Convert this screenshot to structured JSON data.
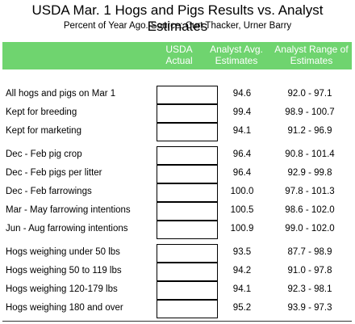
{
  "title": "USDA Mar. 1 Hogs and Pigs Results vs. Analyst Estimates",
  "subtitle": "Percent of Year Ago.  Source: Curt Thacker, Urner Barry",
  "header": {
    "actual_line1": "USDA",
    "actual_line2": "Actual",
    "avg_line1": "Analyst Avg.",
    "avg_line2": "Estimates",
    "range_line1": "Analyst Range of",
    "range_line2": "Estimates"
  },
  "rows": [
    {
      "label": "All hogs and pigs on Mar 1",
      "actual": "",
      "avg": "94.6",
      "range": "92.0 - 97.1"
    },
    {
      "label": "Kept for breeding",
      "actual": "",
      "avg": "99.4",
      "range": "98.9 - 100.7"
    },
    {
      "label": "Kept for marketing",
      "actual": "",
      "avg": "94.1",
      "range": "91.2 - 96.9"
    },
    {
      "label": "Dec - Feb pig crop",
      "actual": "",
      "avg": "96.4",
      "range": "90.8 - 101.4"
    },
    {
      "label": "Dec - Feb pigs per litter",
      "actual": "",
      "avg": "96.4",
      "range": "92.9 - 99.8"
    },
    {
      "label": "Dec - Feb farrowings",
      "actual": "",
      "avg": "100.0",
      "range": "97.8 - 101.3"
    },
    {
      "label": "Mar - May farrowing intentions",
      "actual": "",
      "avg": "100.5",
      "range": "98.6 - 102.0"
    },
    {
      "label": "Jun - Aug farrowing intentions",
      "actual": "",
      "avg": "100.9",
      "range": "99.0 - 102.0"
    },
    {
      "label": "Hogs weighing under 50 lbs",
      "actual": "",
      "avg": "93.5",
      "range": "87.7 - 98.9"
    },
    {
      "label": "Hogs weighing 50 to 119 lbs",
      "actual": "",
      "avg": "94.2",
      "range": "91.0 - 97.8"
    },
    {
      "label": "Hogs weighing 120-179 lbs",
      "actual": "",
      "avg": "94.1",
      "range": "92.3 - 98.1"
    },
    {
      "label": "Hogs weighing 180 and over",
      "actual": "",
      "avg": "95.2",
      "range": "93.9 - 97.3"
    }
  ],
  "colors": {
    "header_bg": "#6fd46f",
    "header_text": "#ffffff"
  }
}
